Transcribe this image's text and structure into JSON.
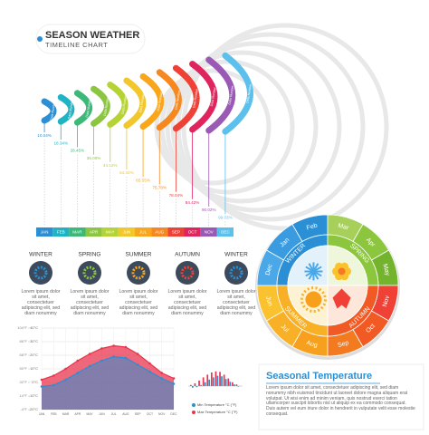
{
  "header": {
    "title": "SEASON WEATHER",
    "subtitle": "TIMELINE CHART"
  },
  "timeline": {
    "arc_label": "Data Number",
    "percents": [
      "10.04%",
      "18.34%",
      "28.45%",
      "35.00%",
      "44.12%",
      "54.34%",
      "65.55%",
      "75.78%",
      "78.04%",
      "84.42%",
      "90.02%",
      "99.03%"
    ],
    "months": [
      "JAN",
      "FEB",
      "MAR",
      "APR",
      "MAY",
      "JUN",
      "JUL",
      "AUG",
      "SEP",
      "OCT",
      "NOV",
      "DEC"
    ]
  },
  "seasons_row": [
    {
      "name": "WINTER",
      "text": "Lorem ipsum dolor sit amet, consectetuer adipiscing elit, sed diam nonummy"
    },
    {
      "name": "SPRING",
      "text": "Lorem ipsum dolor sit amet, consectetuer adipiscing elit, sed diam nonummy"
    },
    {
      "name": "SUMMER",
      "text": "Lorem ipsum dolor sit amet, consectetuer adipiscing elit, sed diam nonummy"
    },
    {
      "name": "AUTUMN",
      "text": "Lorem ipsum dolor sit amet, consectetuer adipiscing elit, sed diam nonummy"
    },
    {
      "name": "WINTER",
      "text": "Lorem ipsum dolor sit amet, consectetuer adipiscing elit, sed diam nonummy"
    }
  ],
  "chart_data": {
    "type": "line",
    "categories": [
      "JAN",
      "FEB",
      "MAR",
      "APR",
      "MAY",
      "JUN",
      "JUL",
      "AUG",
      "SEP",
      "OCT",
      "NOV",
      "DEC"
    ],
    "ylim": [
      -20,
      40
    ],
    "yticks": [
      {
        "value": 40,
        "label": "40°C"
      },
      {
        "value": 30,
        "label": "30°C"
      },
      {
        "value": 20,
        "label": "20°C"
      },
      {
        "value": 10,
        "label": "10°C"
      },
      {
        "value": 0,
        "label": "0°C"
      },
      {
        "value": -10,
        "label": "-10°C"
      },
      {
        "value": -20,
        "label": "-20°C"
      }
    ],
    "y2lim": [
      -4,
      104
    ],
    "y2ticks": [
      {
        "value": 104,
        "label": "104°F"
      },
      {
        "value": 86,
        "label": "86°F"
      },
      {
        "value": 68,
        "label": "68°F"
      },
      {
        "value": 50,
        "label": "50°F"
      },
      {
        "value": 32,
        "label": "32°F"
      },
      {
        "value": 14,
        "label": "14°F"
      },
      {
        "value": -4,
        "label": "-4°F"
      }
    ],
    "grid": true,
    "series": [
      {
        "name": "Max Temperature °C (°F)",
        "color": "#e8344e",
        "values": [
          2,
          5,
          10,
          16,
          21,
          25,
          27,
          26,
          21,
          14,
          7,
          3
        ]
      },
      {
        "name": "Min Temperature °C (°F)",
        "color": "#2a8fd4",
        "values": [
          -3,
          -2,
          2,
          7,
          12,
          16,
          19,
          18,
          13,
          8,
          3,
          -1
        ]
      }
    ]
  },
  "wheel": {
    "months": [
      "Jan",
      "Feb",
      "Mar",
      "Apr",
      "May",
      "Jun",
      "Jul",
      "Aug",
      "Sep",
      "Oct",
      "Nov",
      "Dec"
    ],
    "seasons": [
      "WINTER",
      "SPRING",
      "AUTUMN",
      "SUMMER"
    ]
  },
  "info": {
    "title": "Seasonal Temperature",
    "text": "Lorem ipsum dolor sit amet, consectetuer adipiscing elit, sed diam nonummy nibh euismod tincidunt ut laoreet dolore magna aliquam erat volutpat. Ut wisi enim ad minim veniam, quis nostrud exerci tation ullamcorper suscipit lobortis nisl ut aliquip ex ea commodo consequat. Duis autem vel eum iriure dolor in hendrerit in vulputate velit esse molestie consequat."
  }
}
